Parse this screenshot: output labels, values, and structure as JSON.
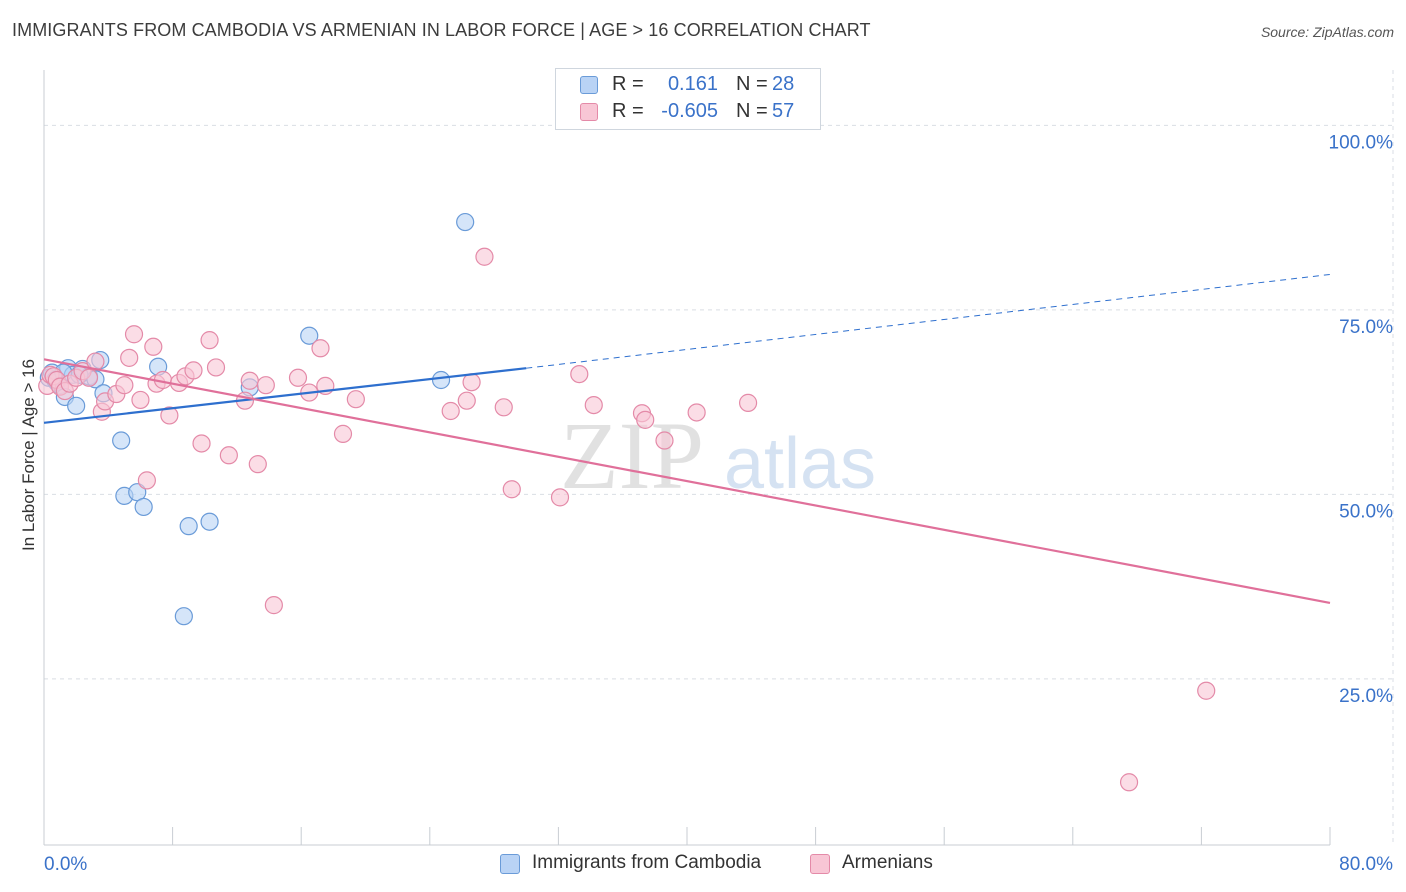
{
  "title": "IMMIGRANTS FROM CAMBODIA VS ARMENIAN IN LABOR FORCE | AGE > 16 CORRELATION CHART",
  "source": "Source: ZipAtlas.com",
  "watermark": {
    "zip": "ZIP",
    "atlas": "atlas"
  },
  "legend": {
    "r_label": "R =",
    "n_label": "N =",
    "rows": [
      {
        "r": "0.161",
        "n": "28",
        "fill": "#b9d3f5",
        "stroke": "#6a9bd8"
      },
      {
        "r": "-0.605",
        "n": "57",
        "fill": "#f8c6d5",
        "stroke": "#e48aa8"
      }
    ]
  },
  "bottom_legend": [
    {
      "label": "Immigrants from Cambodia"
    },
    {
      "label": "Armenians"
    }
  ],
  "colors": {
    "blue_fill": "#b9d3f5",
    "blue_stroke": "#6a9bd8",
    "blue_line": "#2e6fce",
    "pink_fill": "#f8c6d5",
    "pink_stroke": "#e48aa8",
    "pink_line": "#e0709a",
    "axis_text": "#3a72c9",
    "grid": "#d9dee4"
  },
  "chart_data": {
    "type": "scatter",
    "title": "IMMIGRANTS FROM CAMBODIA VS ARMENIAN IN LABOR FORCE | AGE > 16 CORRELATION CHART",
    "xlabel": "",
    "ylabel": "In Labor Force | Age > 16",
    "xlim": [
      0,
      80
    ],
    "ylim": [
      2.5,
      107.5
    ],
    "x_tick_labels": [
      "0.0%",
      "80.0%"
    ],
    "y_ticks": [
      25,
      50,
      75,
      100
    ],
    "y_tick_labels": [
      "25.0%",
      "50.0%",
      "75.0%",
      "100.0%"
    ],
    "grid": true,
    "legend_position": "top-center",
    "series": [
      {
        "name": "Immigrants from Cambodia",
        "points": [
          [
            0.3,
            65.8
          ],
          [
            0.5,
            66.5
          ],
          [
            0.8,
            65.2
          ],
          [
            1.0,
            64.8
          ],
          [
            1.3,
            63.2
          ],
          [
            1.5,
            67.1
          ],
          [
            1.8,
            66.2
          ],
          [
            2.0,
            62.0
          ],
          [
            2.4,
            67.0
          ],
          [
            2.8,
            66.0
          ],
          [
            3.2,
            65.6
          ],
          [
            3.5,
            68.2
          ],
          [
            3.7,
            63.7
          ],
          [
            4.8,
            57.3
          ],
          [
            5.0,
            49.8
          ],
          [
            5.8,
            50.3
          ],
          [
            6.2,
            48.3
          ],
          [
            7.1,
            67.3
          ],
          [
            8.7,
            33.5
          ],
          [
            9.0,
            45.7
          ],
          [
            10.3,
            46.3
          ],
          [
            12.8,
            64.5
          ],
          [
            16.5,
            71.5
          ],
          [
            24.7,
            65.5
          ],
          [
            26.2,
            86.9
          ],
          [
            0.7,
            65.5
          ],
          [
            2.2,
            66.2
          ],
          [
            1.2,
            66.5
          ]
        ],
        "trend": {
          "x": [
            0,
            30
          ],
          "y": [
            59.7,
            67.1
          ],
          "dashed_to": [
            80,
            79.8
          ]
        }
      },
      {
        "name": "Armenians",
        "points": [
          [
            0.2,
            64.7
          ],
          [
            0.4,
            66.2
          ],
          [
            0.6,
            66.0
          ],
          [
            0.8,
            65.5
          ],
          [
            1.0,
            64.6
          ],
          [
            1.3,
            64.0
          ],
          [
            1.6,
            65.0
          ],
          [
            2.0,
            65.8
          ],
          [
            2.4,
            66.7
          ],
          [
            2.8,
            65.8
          ],
          [
            3.2,
            68.0
          ],
          [
            3.6,
            61.2
          ],
          [
            3.8,
            62.6
          ],
          [
            4.5,
            63.6
          ],
          [
            5.0,
            64.8
          ],
          [
            5.3,
            68.5
          ],
          [
            5.6,
            71.7
          ],
          [
            6.0,
            62.8
          ],
          [
            6.4,
            51.9
          ],
          [
            6.8,
            70.0
          ],
          [
            7.0,
            65.0
          ],
          [
            7.4,
            65.5
          ],
          [
            7.8,
            60.7
          ],
          [
            8.4,
            65.1
          ],
          [
            8.8,
            66.0
          ],
          [
            9.3,
            66.8
          ],
          [
            9.8,
            56.9
          ],
          [
            10.3,
            70.9
          ],
          [
            10.7,
            67.2
          ],
          [
            11.5,
            55.3
          ],
          [
            12.5,
            62.7
          ],
          [
            12.8,
            65.4
          ],
          [
            13.3,
            54.1
          ],
          [
            13.8,
            64.8
          ],
          [
            14.3,
            35.0
          ],
          [
            15.8,
            65.8
          ],
          [
            16.5,
            63.8
          ],
          [
            17.2,
            69.8
          ],
          [
            17.5,
            64.7
          ],
          [
            18.6,
            58.2
          ],
          [
            19.4,
            62.9
          ],
          [
            25.3,
            61.3
          ],
          [
            26.3,
            62.7
          ],
          [
            26.6,
            65.2
          ],
          [
            27.4,
            82.2
          ],
          [
            28.6,
            61.8
          ],
          [
            29.1,
            50.7
          ],
          [
            32.1,
            49.6
          ],
          [
            33.3,
            66.3
          ],
          [
            34.2,
            62.1
          ],
          [
            37.2,
            61.0
          ],
          [
            37.4,
            60.1
          ],
          [
            38.6,
            57.3
          ],
          [
            40.6,
            61.1
          ],
          [
            43.8,
            62.4
          ],
          [
            67.5,
            11.0
          ],
          [
            72.3,
            23.4
          ]
        ],
        "trend": {
          "x": [
            0,
            80
          ],
          "y": [
            68.3,
            35.3
          ]
        }
      }
    ]
  }
}
